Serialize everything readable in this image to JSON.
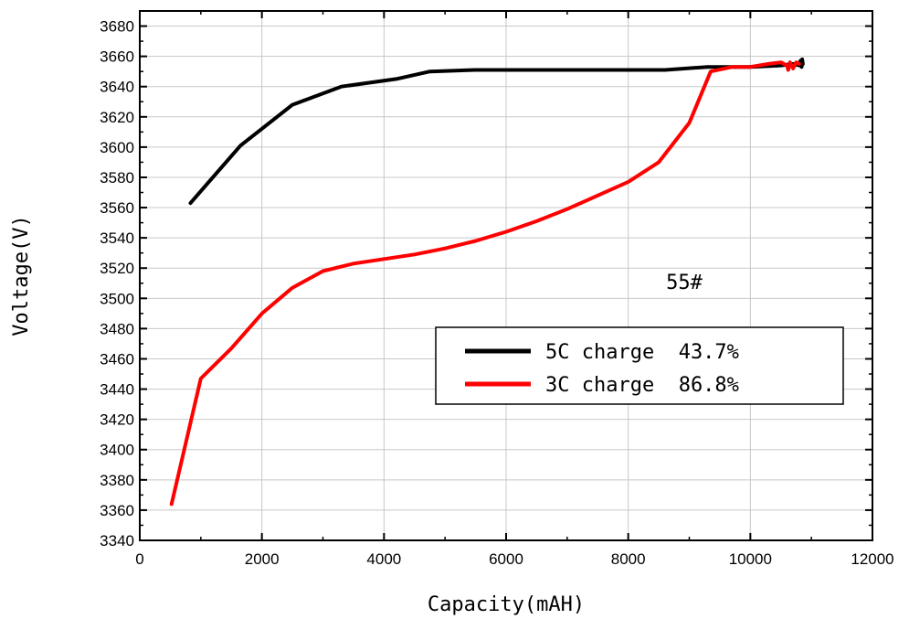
{
  "chart_data": {
    "type": "line",
    "xlabel": "Capacity(mAH)",
    "ylabel": "Voltage(V)",
    "xlim": [
      0,
      12000
    ],
    "ylim": [
      3340,
      3690
    ],
    "x_ticks": [
      0,
      2000,
      4000,
      6000,
      8000,
      10000,
      12000
    ],
    "y_ticks": [
      3340,
      3360,
      3380,
      3400,
      3420,
      3440,
      3460,
      3480,
      3500,
      3520,
      3540,
      3560,
      3580,
      3600,
      3620,
      3640,
      3660,
      3680
    ],
    "grid": true,
    "legend_position": "lower-right",
    "annotation": "55#",
    "series": [
      {
        "name": "5C charge  43.7%",
        "color": "#000000",
        "points": [
          [
            830,
            3563
          ],
          [
            1650,
            3601
          ],
          [
            2500,
            3628
          ],
          [
            3300,
            3640
          ],
          [
            4200,
            3645
          ],
          [
            4750,
            3650
          ],
          [
            5500,
            3651
          ],
          [
            6500,
            3651
          ],
          [
            7500,
            3651
          ],
          [
            8600,
            3651
          ],
          [
            9300,
            3653
          ],
          [
            10000,
            3653
          ],
          [
            10500,
            3654
          ],
          [
            10700,
            3655
          ],
          [
            10800,
            3654
          ],
          [
            10820,
            3657
          ],
          [
            10840,
            3653
          ],
          [
            10850,
            3658
          ],
          [
            10860,
            3655
          ]
        ]
      },
      {
        "name": "3C charge  86.8%",
        "color": "#ff0000",
        "points": [
          [
            520,
            3364
          ],
          [
            1000,
            3447
          ],
          [
            1500,
            3467
          ],
          [
            2000,
            3490
          ],
          [
            2500,
            3507
          ],
          [
            3000,
            3518
          ],
          [
            3500,
            3523
          ],
          [
            4000,
            3526
          ],
          [
            4500,
            3529
          ],
          [
            5000,
            3533
          ],
          [
            5500,
            3538
          ],
          [
            6000,
            3544
          ],
          [
            6500,
            3551
          ],
          [
            7000,
            3559
          ],
          [
            7500,
            3568
          ],
          [
            8000,
            3577
          ],
          [
            8500,
            3590
          ],
          [
            9000,
            3616
          ],
          [
            9350,
            3650
          ],
          [
            9700,
            3653
          ],
          [
            10000,
            3653
          ],
          [
            10300,
            3655
          ],
          [
            10500,
            3656
          ],
          [
            10600,
            3654
          ],
          [
            10620,
            3651
          ],
          [
            10650,
            3656
          ],
          [
            10700,
            3652
          ],
          [
            10750,
            3656
          ],
          [
            10800,
            3655
          ]
        ]
      }
    ]
  }
}
